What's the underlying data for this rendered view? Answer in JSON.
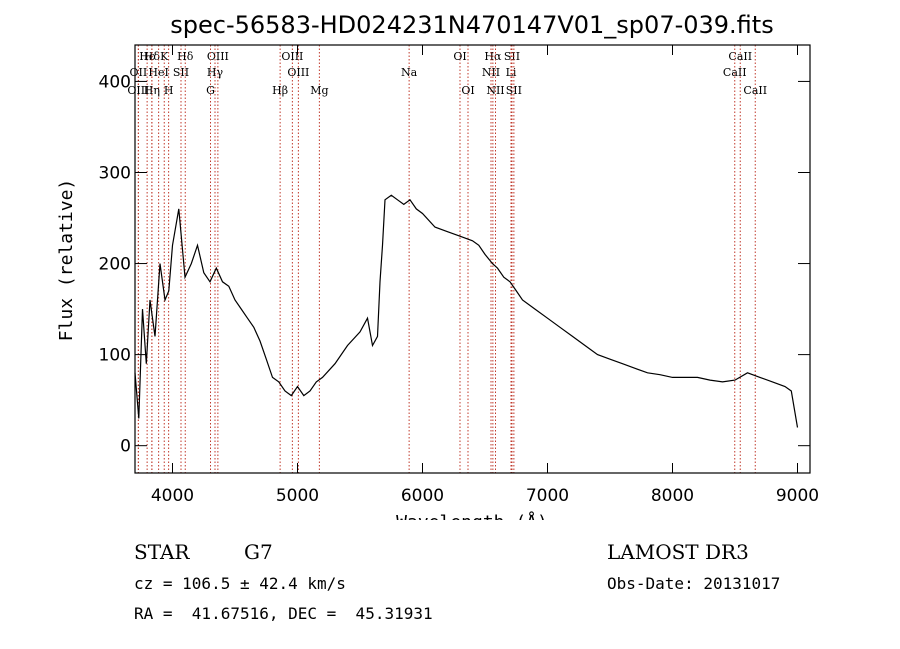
{
  "chart_data": {
    "type": "line",
    "title": "spec-56583-HD024231N470147V01_sp07-039.fits",
    "xlabel": "Wavelength (Å)",
    "ylabel": "Flux (relative)",
    "xlim": [
      3700,
      9100
    ],
    "ylim": [
      -30,
      440
    ],
    "x_ticks": [
      4000,
      5000,
      6000,
      7000,
      8000,
      9000
    ],
    "y_ticks": [
      0,
      100,
      200,
      300,
      400
    ],
    "series": [
      {
        "name": "spectrum",
        "x": [
          3700,
          3730,
          3760,
          3790,
          3820,
          3860,
          3900,
          3940,
          3970,
          4000,
          4050,
          4100,
          4150,
          4200,
          4250,
          4300,
          4350,
          4400,
          4450,
          4500,
          4550,
          4600,
          4650,
          4700,
          4750,
          4800,
          4850,
          4900,
          4950,
          5000,
          5050,
          5100,
          5150,
          5200,
          5300,
          5400,
          5500,
          5560,
          5600,
          5640,
          5660,
          5680,
          5700,
          5750,
          5800,
          5850,
          5900,
          5950,
          6000,
          6100,
          6200,
          6300,
          6400,
          6450,
          6500,
          6560,
          6600,
          6650,
          6700,
          6750,
          6800,
          6900,
          7000,
          7100,
          7200,
          7300,
          7400,
          7500,
          7600,
          7700,
          7800,
          7900,
          8000,
          8100,
          8200,
          8300,
          8400,
          8500,
          8600,
          8700,
          8800,
          8900,
          8950,
          9000
        ],
        "y": [
          80,
          30,
          150,
          90,
          160,
          120,
          200,
          160,
          170,
          220,
          260,
          185,
          200,
          220,
          190,
          180,
          195,
          180,
          175,
          160,
          150,
          140,
          130,
          115,
          95,
          75,
          70,
          60,
          55,
          65,
          55,
          60,
          70,
          75,
          90,
          110,
          125,
          140,
          110,
          120,
          180,
          220,
          270,
          275,
          270,
          265,
          270,
          260,
          255,
          240,
          235,
          230,
          225,
          220,
          210,
          200,
          195,
          185,
          180,
          170,
          160,
          150,
          140,
          130,
          120,
          110,
          100,
          95,
          90,
          85,
          80,
          78,
          75,
          75,
          75,
          72,
          70,
          72,
          80,
          75,
          70,
          65,
          60,
          20
        ]
      }
    ],
    "lines": [
      {
        "name": "Hϵ",
        "w": 3797,
        "row": 0
      },
      {
        "name": "OII",
        "w": 3727,
        "row": 1
      },
      {
        "name": "OIII",
        "w": 3727,
        "row": 2
      },
      {
        "name": "Hδ",
        "w": 3835,
        "row": 0
      },
      {
        "name": "K",
        "w": 3934,
        "row": 0
      },
      {
        "name": "H",
        "w": 3969,
        "row": 2
      },
      {
        "name": "HeI",
        "w": 3889,
        "row": 1
      },
      {
        "name": "SII",
        "w": 4068,
        "row": 1
      },
      {
        "name": "Hη",
        "w": 3835,
        "row": 2
      },
      {
        "name": "Hδ",
        "w": 4102,
        "row": 0
      },
      {
        "name": "OIII",
        "w": 4363,
        "row": 0
      },
      {
        "name": "Hγ",
        "w": 4340,
        "row": 1
      },
      {
        "name": "G",
        "w": 4304,
        "row": 2
      },
      {
        "name": "OIII",
        "w": 4959,
        "row": 0
      },
      {
        "name": "OIII",
        "w": 5007,
        "row": 1
      },
      {
        "name": "Hβ",
        "w": 4861,
        "row": 2
      },
      {
        "name": "Mg",
        "w": 5175,
        "row": 2
      },
      {
        "name": "Na",
        "w": 5893,
        "row": 1
      },
      {
        "name": "OI",
        "w": 6300,
        "row": 0
      },
      {
        "name": "OI",
        "w": 6364,
        "row": 2
      },
      {
        "name": "Hα",
        "w": 6563,
        "row": 0
      },
      {
        "name": "SII",
        "w": 6716,
        "row": 0
      },
      {
        "name": "NII",
        "w": 6548,
        "row": 1
      },
      {
        "name": "Li",
        "w": 6708,
        "row": 1
      },
      {
        "name": "NII",
        "w": 6584,
        "row": 2
      },
      {
        "name": "SII",
        "w": 6731,
        "row": 2
      },
      {
        "name": "CaII",
        "w": 8542,
        "row": 0
      },
      {
        "name": "CaII",
        "w": 8498,
        "row": 1
      },
      {
        "name": "CaII",
        "w": 8662,
        "row": 2
      }
    ]
  },
  "info": {
    "object_class": "STAR",
    "subclass": "G7",
    "survey": "LAMOST DR3",
    "redshift": "cz = 106.5 ± 42.4 km/s",
    "obs_date": "Obs-Date: 20131017",
    "coords": "RA =  41.67516, DEC =  45.31931"
  },
  "colors": {
    "line_marker": "#c0392b",
    "spectrum": "#000000"
  }
}
